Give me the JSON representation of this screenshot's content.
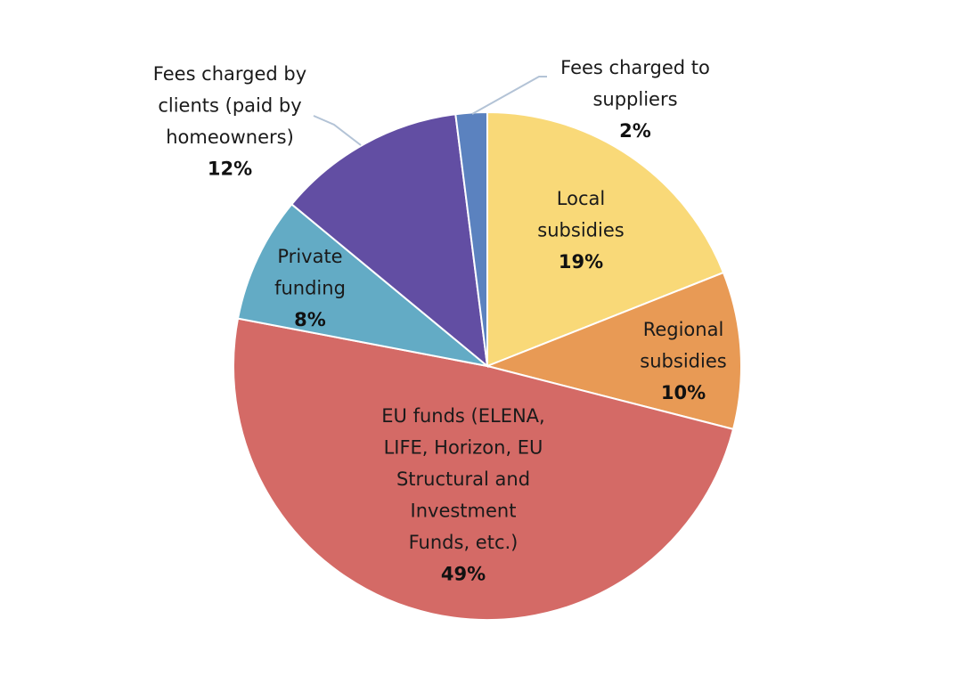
{
  "chart_data": {
    "type": "pie",
    "title": "",
    "start_angle_deg": 0,
    "direction": "clockwise",
    "slices": [
      {
        "label": "Local subsidies",
        "label_lines": [
          "Local",
          "subsidies"
        ],
        "value": 19,
        "value_label": "19%",
        "color": "#f9d978",
        "label_position": "inside"
      },
      {
        "label": "Regional subsidies",
        "label_lines": [
          "Regional",
          "subsidies"
        ],
        "value": 10,
        "value_label": "10%",
        "color": "#e89a55",
        "label_position": "inside"
      },
      {
        "label": "EU funds (ELENA, LIFE, Horizon, EU Structural and Investment Funds, etc.)",
        "label_lines": [
          "EU funds (ELENA,",
          "LIFE, Horizon, EU",
          "Structural and",
          "Investment",
          "Funds, etc.)"
        ],
        "value": 49,
        "value_label": "49%",
        "color": "#d46a66",
        "label_position": "inside"
      },
      {
        "label": "Private funding",
        "label_lines": [
          "Private",
          "funding"
        ],
        "value": 8,
        "value_label": "8%",
        "color": "#63abc5",
        "label_position": "inside"
      },
      {
        "label": "Fees charged by clients (paid by homeowners)",
        "label_lines": [
          "Fees charged by",
          "clients (paid by",
          "homeowners)"
        ],
        "value": 12,
        "value_label": "12%",
        "color": "#624ea3",
        "label_position": "outside-left"
      },
      {
        "label": "Fees charged to suppliers",
        "label_lines": [
          "Fees charged to",
          "suppliers"
        ],
        "value": 2,
        "value_label": "2%",
        "color": "#5b82bf",
        "label_position": "outside-top"
      }
    ]
  }
}
